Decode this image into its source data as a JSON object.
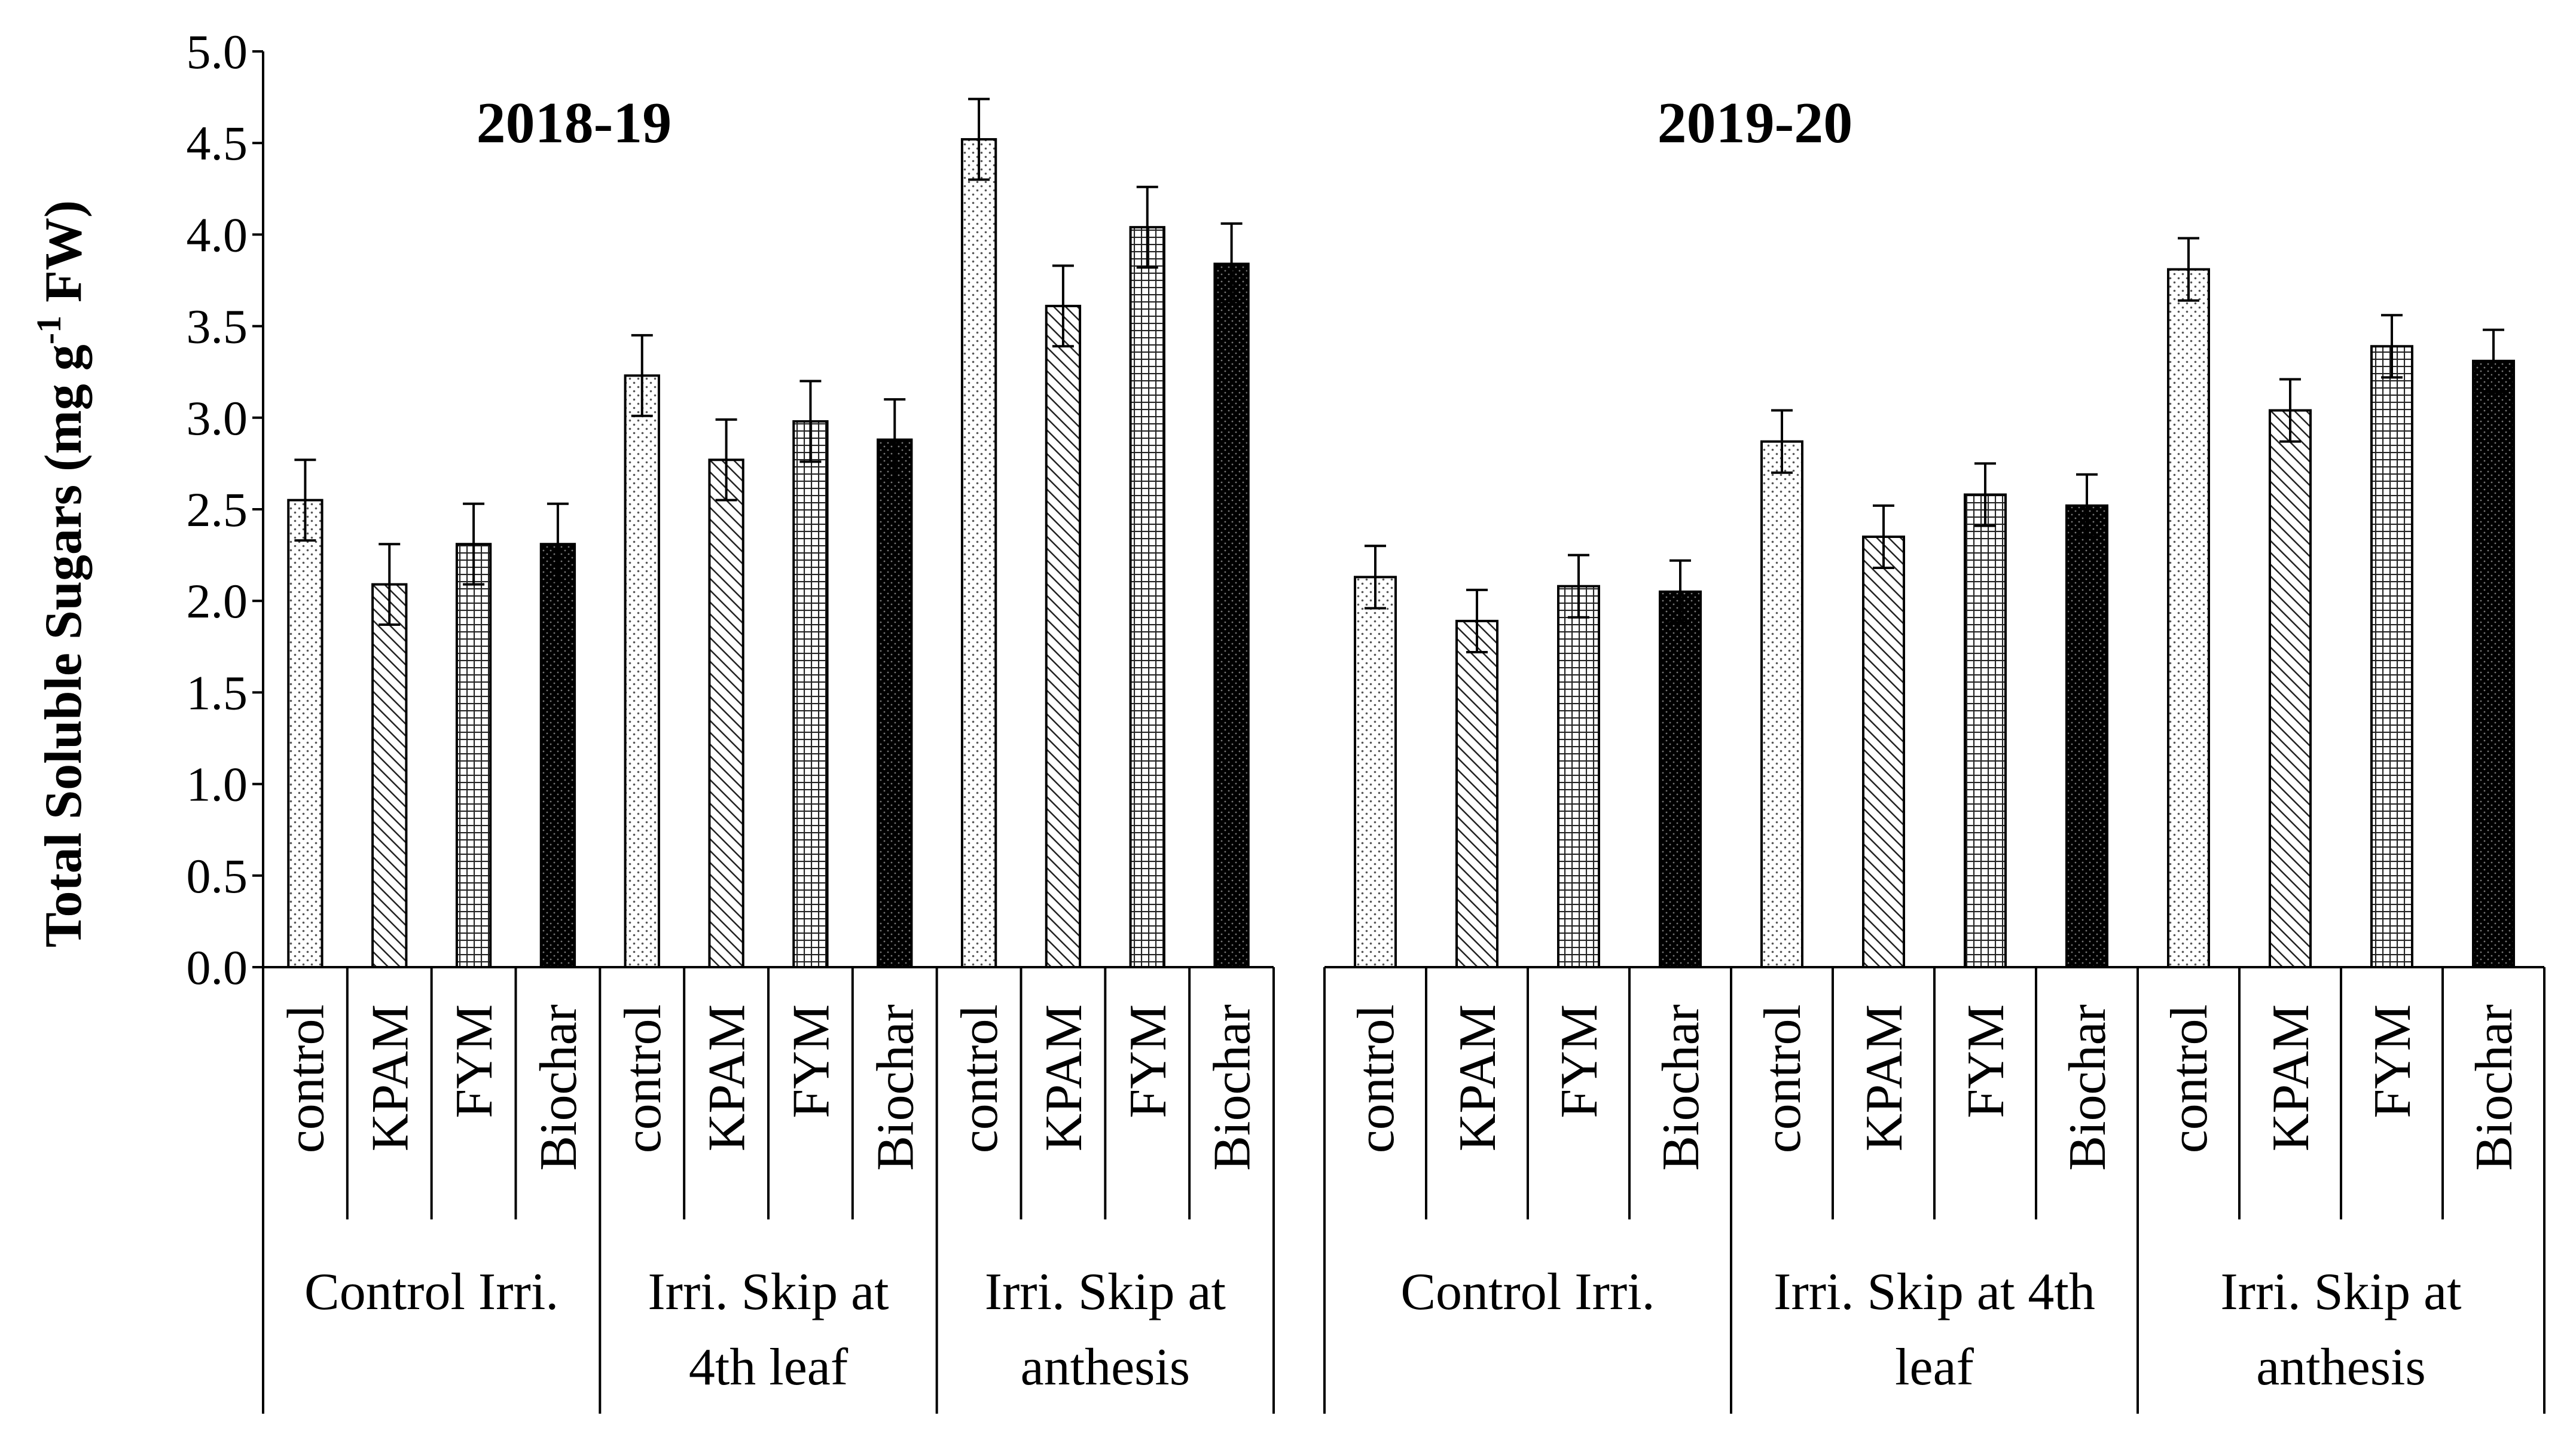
{
  "chart_data": {
    "type": "bar",
    "ylabel_main": "Total Soluble Sugars (mg g",
    "ylabel_sup": "-1",
    "ylabel_end": " FW)",
    "ylim": [
      0,
      5.0
    ],
    "ytick_labels": [
      "0.0",
      "0.5",
      "1.0",
      "1.5",
      "2.0",
      "2.5",
      "3.0",
      "3.5",
      "4.0",
      "4.5",
      "5.0"
    ],
    "ytick_values": [
      0,
      0.5,
      1.0,
      1.5,
      2.0,
      2.5,
      3.0,
      3.5,
      4.0,
      4.5,
      5.0
    ],
    "treatments": [
      "control",
      "KPAM",
      "FYM",
      "Biochar"
    ],
    "patterns": [
      "dots",
      "diagonal",
      "grid",
      "dark"
    ],
    "panels": [
      {
        "title": "2018-19",
        "groups": [
          {
            "label": [
              "Control Irri."
            ],
            "values": [
              2.55,
              2.09,
              2.31,
              2.31
            ],
            "errors": [
              0.22,
              0.22,
              0.22,
              0.22
            ]
          },
          {
            "label": [
              "Irri. Skip at",
              "4th leaf"
            ],
            "values": [
              3.23,
              2.77,
              2.98,
              2.88
            ],
            "errors": [
              0.22,
              0.22,
              0.22,
              0.22
            ]
          },
          {
            "label": [
              "Irri. Skip at",
              "anthesis"
            ],
            "values": [
              4.52,
              3.61,
              4.04,
              3.84
            ],
            "errors": [
              0.22,
              0.22,
              0.22,
              0.22
            ]
          }
        ]
      },
      {
        "title": "2019-20",
        "groups": [
          {
            "label": [
              "Control Irri."
            ],
            "values": [
              2.13,
              1.89,
              2.08,
              2.05
            ],
            "errors": [
              0.17,
              0.17,
              0.17,
              0.17
            ]
          },
          {
            "label": [
              "Irri. Skip at 4th",
              "leaf"
            ],
            "values": [
              2.87,
              2.35,
              2.58,
              2.52
            ],
            "errors": [
              0.17,
              0.17,
              0.17,
              0.17
            ]
          },
          {
            "label": [
              "Irri. Skip at",
              "anthesis"
            ],
            "values": [
              3.81,
              3.04,
              3.39,
              3.31
            ],
            "errors": [
              0.17,
              0.17,
              0.17,
              0.17
            ]
          }
        ]
      }
    ]
  }
}
